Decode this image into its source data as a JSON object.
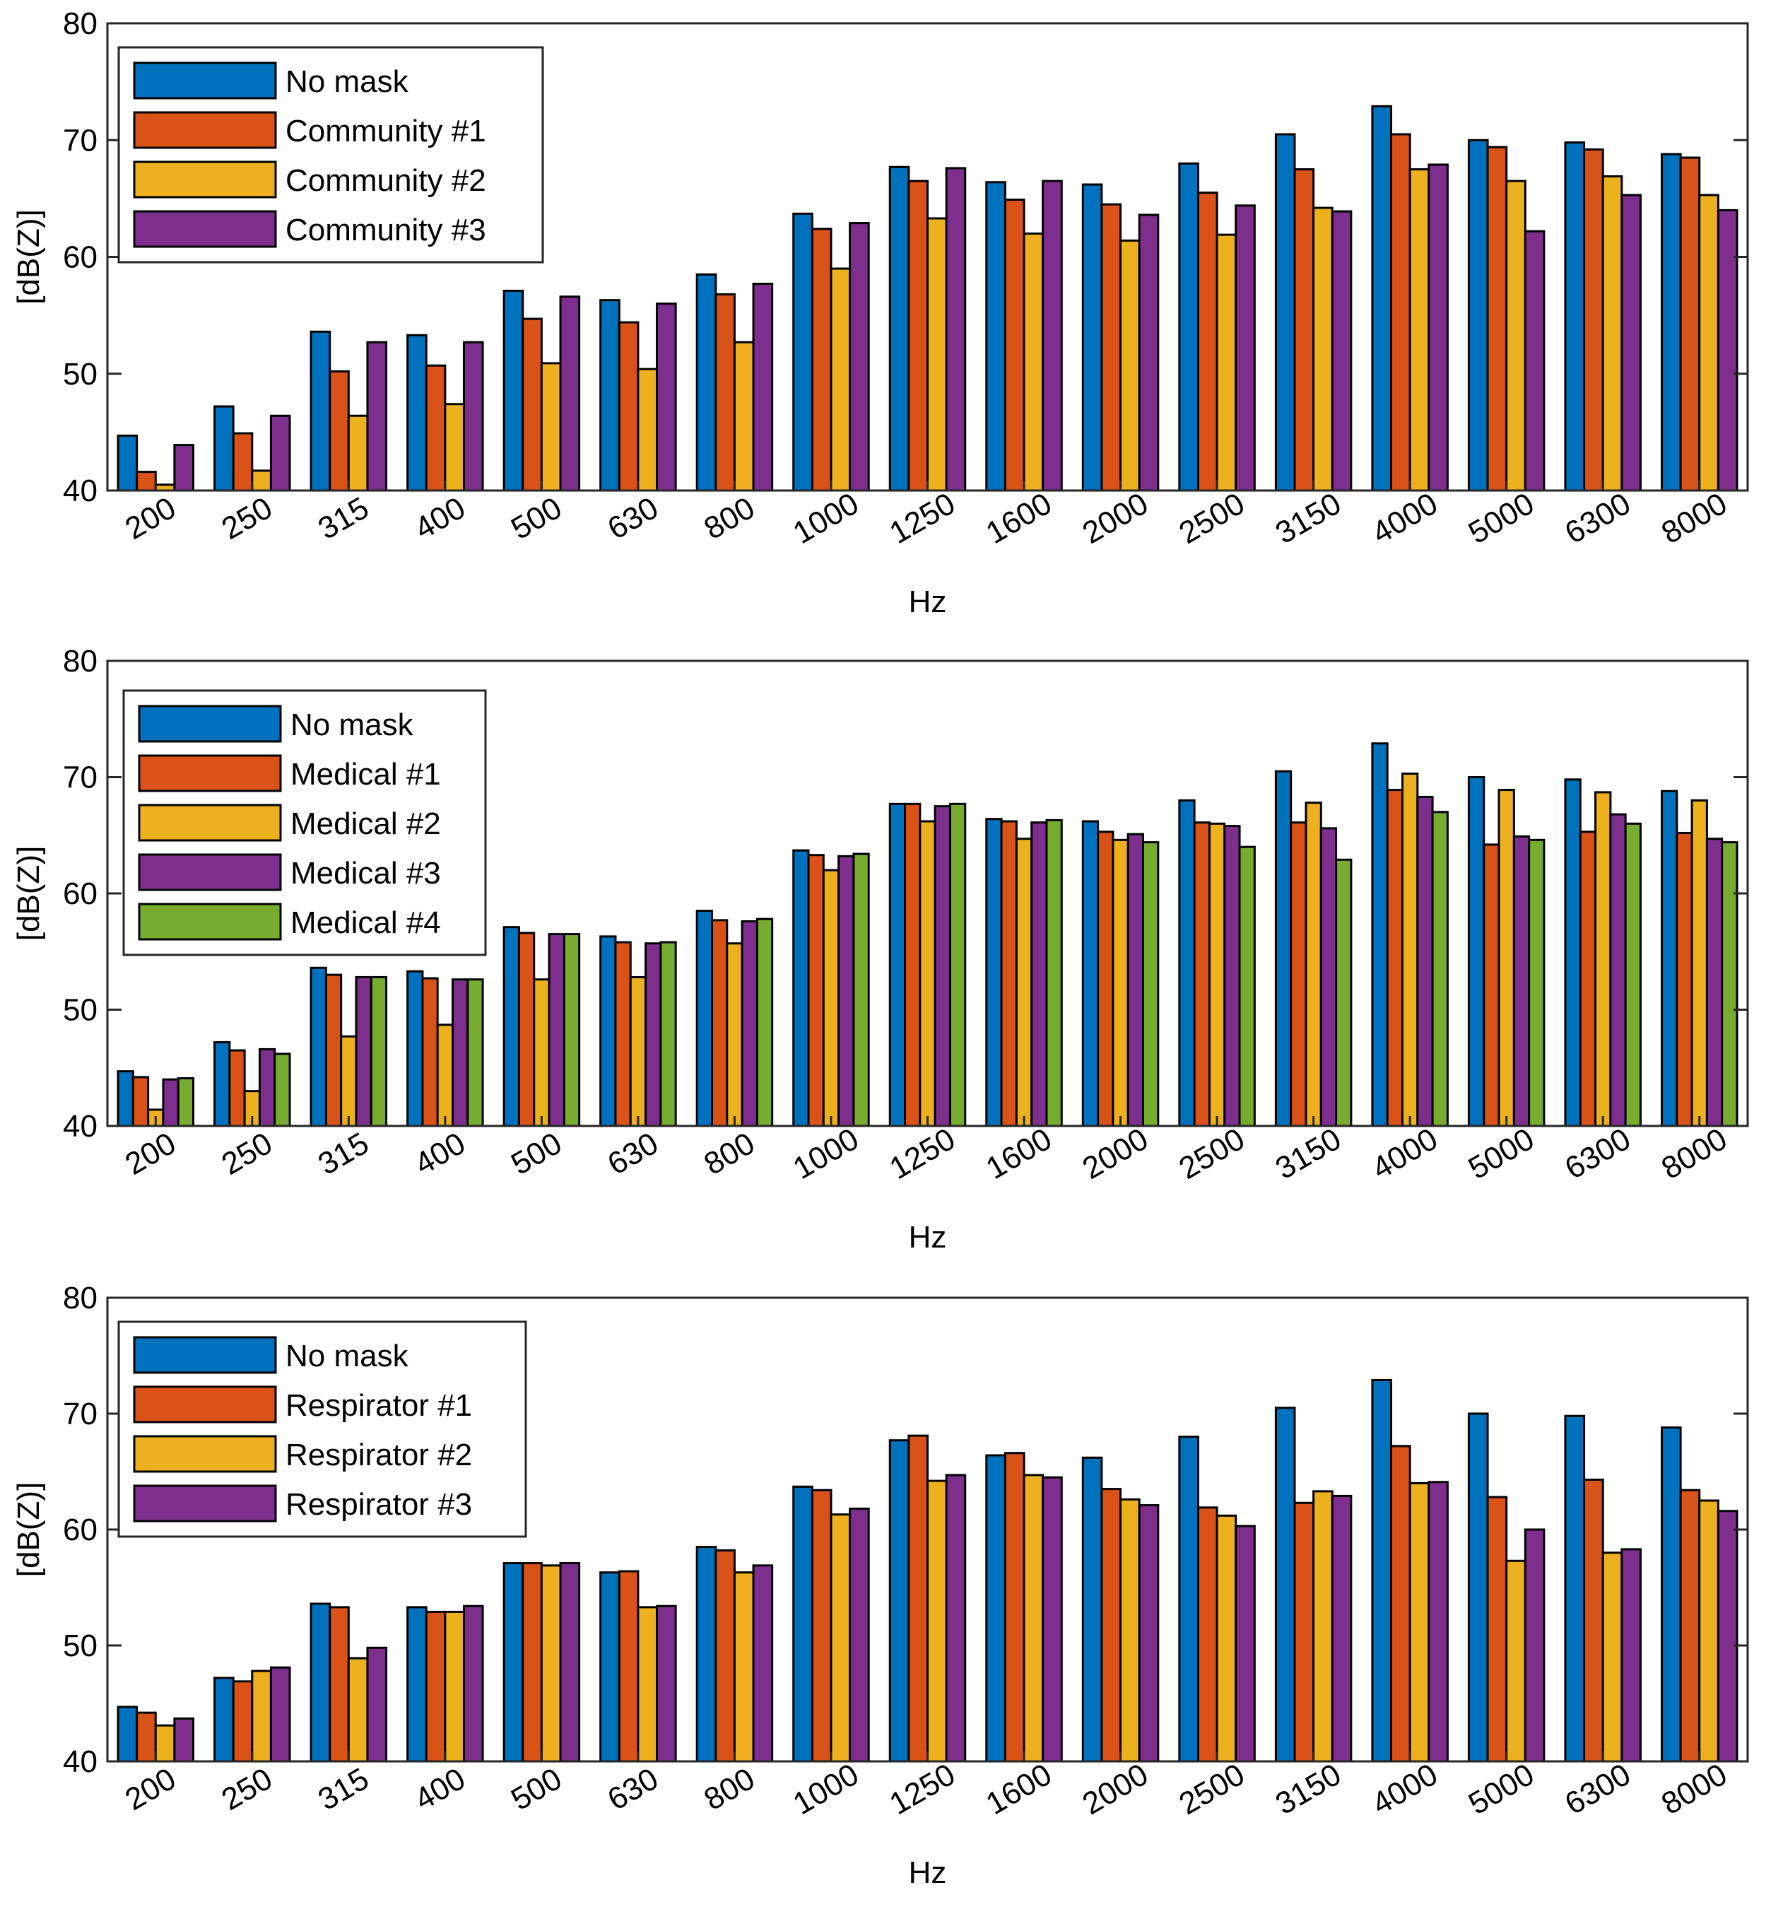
{
  "chart_data": [
    {
      "type": "bar",
      "title": "",
      "xlabel": "Hz",
      "ylabel": "[dB(Z)]",
      "ylim": [
        40,
        80
      ],
      "yticks": [
        40,
        50,
        60,
        70,
        80
      ],
      "legend_position": "top-left",
      "categories": [
        "200",
        "250",
        "315",
        "400",
        "500",
        "630",
        "800",
        "1000",
        "1250",
        "1600",
        "2000",
        "2500",
        "3150",
        "4000",
        "5000",
        "6300",
        "8000"
      ],
      "series": [
        {
          "name": "No mask",
          "color": "#0072BD",
          "values": [
            44.7,
            47.2,
            53.6,
            53.3,
            57.1,
            56.3,
            58.5,
            63.7,
            67.7,
            66.4,
            66.2,
            68.0,
            70.5,
            72.9,
            70.0,
            69.8,
            68.8
          ]
        },
        {
          "name": "Community #1",
          "color": "#D95319",
          "values": [
            41.6,
            44.9,
            50.2,
            50.7,
            54.7,
            54.4,
            56.8,
            62.4,
            66.5,
            64.9,
            64.5,
            65.5,
            67.5,
            70.5,
            69.4,
            69.2,
            68.5
          ]
        },
        {
          "name": "Community #2",
          "color": "#EDB120",
          "values": [
            40.5,
            41.7,
            46.4,
            47.4,
            50.9,
            50.4,
            52.7,
            59.0,
            63.3,
            62.0,
            61.4,
            61.9,
            64.2,
            67.5,
            66.5,
            66.9,
            65.3
          ]
        },
        {
          "name": "Community #3",
          "color": "#7E2F8E",
          "values": [
            43.9,
            46.4,
            52.7,
            52.7,
            56.6,
            56.0,
            57.7,
            62.9,
            67.6,
            66.5,
            63.6,
            64.4,
            63.9,
            67.9,
            62.2,
            65.3,
            64.0
          ]
        }
      ]
    },
    {
      "type": "bar",
      "title": "",
      "xlabel": "Hz",
      "ylabel": "[dB(Z)]",
      "ylim": [
        40,
        80
      ],
      "yticks": [
        40,
        50,
        60,
        70,
        80
      ],
      "legend_position": "top-left",
      "categories": [
        "200",
        "250",
        "315",
        "400",
        "500",
        "630",
        "800",
        "1000",
        "1250",
        "1600",
        "2000",
        "2500",
        "3150",
        "4000",
        "5000",
        "6300",
        "8000"
      ],
      "series": [
        {
          "name": "No mask",
          "color": "#0072BD",
          "values": [
            44.7,
            47.2,
            53.6,
            53.3,
            57.1,
            56.3,
            58.5,
            63.7,
            67.7,
            66.4,
            66.2,
            68.0,
            70.5,
            72.9,
            70.0,
            69.8,
            68.8
          ]
        },
        {
          "name": "Medical #1",
          "color": "#D95319",
          "values": [
            44.2,
            46.5,
            53.0,
            52.7,
            56.6,
            55.8,
            57.7,
            63.3,
            67.7,
            66.2,
            65.3,
            66.1,
            66.1,
            68.9,
            64.2,
            65.3,
            65.2
          ]
        },
        {
          "name": "Medical #2",
          "color": "#EDB120",
          "values": [
            41.4,
            43.0,
            47.7,
            48.7,
            52.6,
            52.8,
            55.7,
            62.0,
            66.2,
            64.7,
            64.6,
            66.0,
            67.8,
            70.3,
            68.9,
            68.7,
            68.0
          ]
        },
        {
          "name": "Medical #3",
          "color": "#7E2F8E",
          "values": [
            44.0,
            46.6,
            52.8,
            52.6,
            56.5,
            55.7,
            57.6,
            63.2,
            67.5,
            66.1,
            65.1,
            65.8,
            65.6,
            68.3,
            64.9,
            66.8,
            64.7
          ]
        },
        {
          "name": "Medical #4",
          "color": "#77AC30",
          "values": [
            44.1,
            46.2,
            52.8,
            52.6,
            56.5,
            55.8,
            57.8,
            63.4,
            67.7,
            66.3,
            64.4,
            64.0,
            62.9,
            67.0,
            64.6,
            66.0,
            64.4
          ]
        }
      ]
    },
    {
      "type": "bar",
      "title": "",
      "xlabel": "Hz",
      "ylabel": "[dB(Z)]",
      "ylim": [
        40,
        80
      ],
      "yticks": [
        40,
        50,
        60,
        70,
        80
      ],
      "legend_position": "top-left",
      "categories": [
        "200",
        "250",
        "315",
        "400",
        "500",
        "630",
        "800",
        "1000",
        "1250",
        "1600",
        "2000",
        "2500",
        "3150",
        "4000",
        "5000",
        "6300",
        "8000"
      ],
      "series": [
        {
          "name": "No mask",
          "color": "#0072BD",
          "values": [
            44.7,
            47.2,
            53.6,
            53.3,
            57.1,
            56.3,
            58.5,
            63.7,
            67.7,
            66.4,
            66.2,
            68.0,
            70.5,
            72.9,
            70.0,
            69.8,
            68.8
          ]
        },
        {
          "name": "Respirator #1",
          "color": "#D95319",
          "values": [
            44.2,
            46.9,
            53.3,
            52.9,
            57.1,
            56.4,
            58.2,
            63.4,
            68.1,
            66.6,
            63.5,
            61.9,
            62.3,
            67.2,
            62.8,
            64.3,
            63.4
          ]
        },
        {
          "name": "Respirator #2",
          "color": "#EDB120",
          "values": [
            43.1,
            47.8,
            48.9,
            52.9,
            56.9,
            53.3,
            56.3,
            61.3,
            64.2,
            64.7,
            62.6,
            61.2,
            63.3,
            64.0,
            57.3,
            58.0,
            62.5
          ]
        },
        {
          "name": "Respirator #3",
          "color": "#7E2F8E",
          "values": [
            43.7,
            48.1,
            49.8,
            53.4,
            57.1,
            53.4,
            56.9,
            61.8,
            64.7,
            64.5,
            62.1,
            60.3,
            62.9,
            64.1,
            60.0,
            58.3,
            61.6
          ]
        }
      ]
    }
  ]
}
